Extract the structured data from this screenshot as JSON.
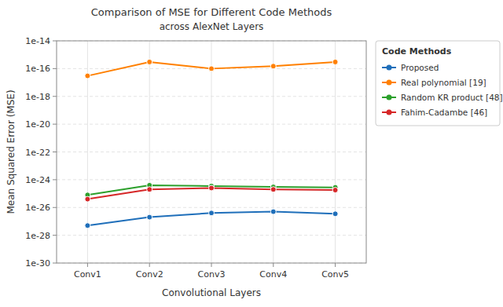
{
  "chart_data": {
    "type": "line",
    "title": "Comparison of MSE for Different Code Methods",
    "subtitle": "across AlexNet Layers",
    "xlabel": "Convolutional Layers",
    "ylabel": "Mean Squared Error (MSE)",
    "legend_title": "Code Methods",
    "categories": [
      "Conv1",
      "Conv2",
      "Conv3",
      "Conv4",
      "Conv5"
    ],
    "series": [
      {
        "name": "Proposed",
        "color": "#1f6fba",
        "values": [
          5e-28,
          2e-27,
          4e-27,
          5e-27,
          3.5e-27
        ]
      },
      {
        "name": "Real polynomial [19]",
        "color": "#ff8000",
        "values": [
          3e-17,
          3e-16,
          1e-16,
          1.5e-16,
          3e-16
        ]
      },
      {
        "name": "Random KR product [48]",
        "color": "#2ca02c",
        "values": [
          8e-26,
          4e-25,
          3.5e-25,
          3e-25,
          2.8e-25
        ]
      },
      {
        "name": "Fahim-Cadambe [46]",
        "color": "#d62728",
        "values": [
          4e-26,
          2e-25,
          2.5e-25,
          2e-25,
          1.8e-25
        ]
      }
    ],
    "ylim": [
      1e-30,
      1e-14
    ],
    "yticks": [
      {
        "value": 1e-30,
        "label": "1e-30"
      },
      {
        "value": 1e-28,
        "label": "1e-28"
      },
      {
        "value": 1e-26,
        "label": "1e-26"
      },
      {
        "value": 1e-24,
        "label": "1e-24"
      },
      {
        "value": 1e-22,
        "label": "1e-22"
      },
      {
        "value": 1e-20,
        "label": "1e-20"
      },
      {
        "value": 1e-18,
        "label": "1e-18"
      },
      {
        "value": 1e-16,
        "label": "1e-16"
      },
      {
        "value": 1e-14,
        "label": "1e-14"
      }
    ],
    "log": "y",
    "grid": true,
    "legend": "upper right",
    "marker": "circle"
  }
}
